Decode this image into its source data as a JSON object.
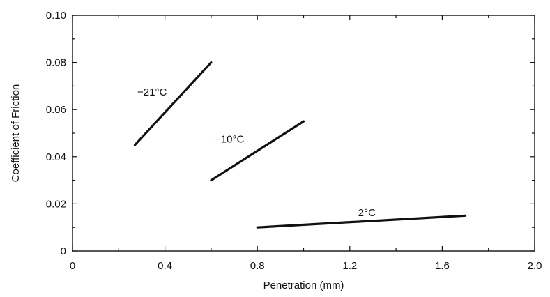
{
  "chart_data": {
    "type": "line",
    "title": "",
    "xlabel": "Penetration (mm)",
    "ylabel": "Coefficient of Friction",
    "xlim": [
      0,
      2.0
    ],
    "ylim": [
      0,
      0.1
    ],
    "x_ticks": [
      0,
      0.4,
      0.8,
      1.2,
      1.6,
      2.0
    ],
    "x_tick_labels": [
      "0",
      "0.4",
      "0.8",
      "1.2",
      "1.6",
      "2.0"
    ],
    "y_ticks": [
      0,
      0.02,
      0.04,
      0.06,
      0.08,
      0.1
    ],
    "y_tick_labels": [
      "0",
      "0.02",
      "0.04",
      "0.06",
      "0.08",
      "0.10"
    ],
    "grid": false,
    "legend": "none",
    "series": [
      {
        "name": "−21°C",
        "x": [
          0.27,
          0.6
        ],
        "y": [
          0.045,
          0.08
        ]
      },
      {
        "name": "−10°C",
        "x": [
          0.6,
          1.0
        ],
        "y": [
          0.03,
          0.055
        ]
      },
      {
        "name": "2°C",
        "x": [
          0.8,
          1.7
        ],
        "y": [
          0.01,
          0.015
        ]
      }
    ]
  }
}
